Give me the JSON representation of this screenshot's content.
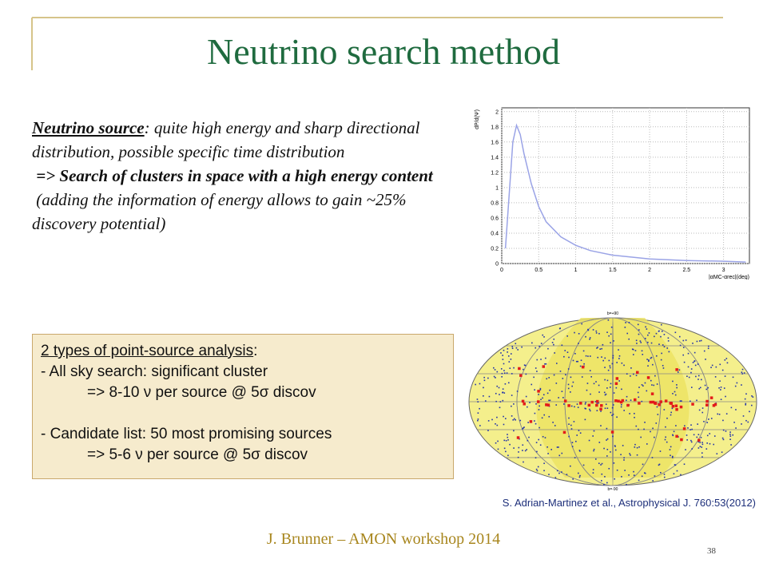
{
  "header": {
    "title": "Neutrino search method"
  },
  "intro": {
    "term": "Neutrino source",
    "description": ": quite high energy and sharp directional distribution, possible specific time distribution",
    "conclusion": "=> Search of clusters in space with a high energy content",
    "note": "(adding the information of energy allows to gain ~25% discovery potential)"
  },
  "analysis_box": {
    "heading": "2 types of point-source analysis",
    "heading_tail": ":",
    "lines": [
      "- All sky search: significant cluster",
      "=> 8-10 ν per source @ 5σ discov",
      "- Candidate list: 50 most promising sources",
      "=> 5-6 ν per source @ 5σ discov"
    ]
  },
  "chart_data": {
    "type": "line",
    "ylabel": "dP/d(Ψ)",
    "xlabel": "|αMC-αrec|(deg)",
    "x": [
      0.05,
      0.1,
      0.15,
      0.2,
      0.25,
      0.3,
      0.4,
      0.5,
      0.6,
      0.8,
      1.0,
      1.2,
      1.5,
      2.0,
      2.5,
      3.0,
      3.3
    ],
    "values": [
      0.2,
      0.9,
      1.6,
      1.82,
      1.7,
      1.45,
      1.05,
      0.75,
      0.55,
      0.35,
      0.24,
      0.17,
      0.11,
      0.06,
      0.04,
      0.03,
      0.02
    ],
    "color": "#9aa3e6",
    "xlim": [
      0,
      3.35
    ],
    "ylim": [
      0,
      2.05
    ],
    "xticks": [
      0,
      0.5,
      1,
      1.5,
      2,
      2.5,
      3
    ],
    "yticks": [
      0,
      0.2,
      0.4,
      0.6,
      0.8,
      1,
      1.2,
      1.4,
      1.6,
      1.8,
      2
    ],
    "grid": true
  },
  "skymap": {
    "top_label": "b=+90",
    "bottom_label": "b=-90"
  },
  "caption": "S. Adrian-Martinez et al., Astrophysical J. 760:53(2012)",
  "footer": {
    "text": "J. Brunner – AMON workshop 2014",
    "page": "38"
  }
}
